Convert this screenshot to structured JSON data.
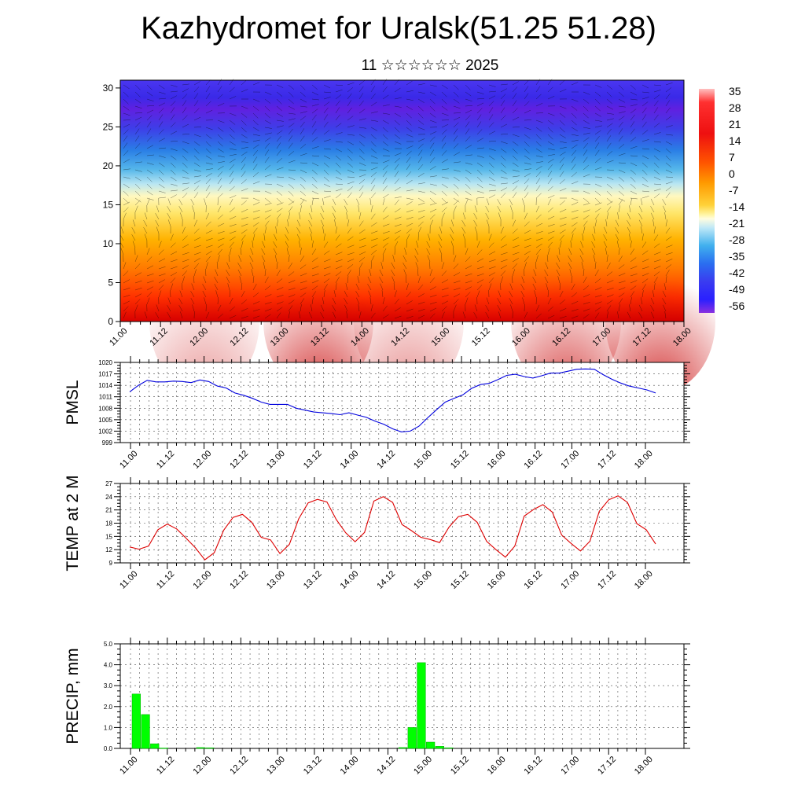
{
  "title": "Kazhydromet for Uralsk(51.25 51.28)",
  "subtitle": "11 ☆☆☆☆☆☆ 2025",
  "time_labels": [
    "11.00",
    "11.12",
    "12.00",
    "12.12",
    "13.00",
    "13.12",
    "14.00",
    "14.12",
    "15.00",
    "15.12",
    "16.00",
    "16.12",
    "17.00",
    "17.12",
    "18.00"
  ],
  "chart_data": [
    {
      "type": "heatmap",
      "name_hint": "vertical cross-section",
      "y_ticks": [
        0,
        5,
        10,
        15,
        20,
        25,
        30
      ],
      "ylim": [
        0,
        31
      ],
      "colorbar_labels": [
        "35",
        "28",
        "21",
        "14",
        "7",
        "0",
        "-7",
        "-14",
        "-21",
        "-28",
        "-35",
        "-42",
        "-49",
        "-56"
      ]
    },
    {
      "type": "line",
      "ylabel": "PMSL",
      "ylim": [
        999,
        1020
      ],
      "y_ticks": [
        "999",
        "1002",
        "1005",
        "1008",
        "1011",
        "1014",
        "1017",
        "1020"
      ],
      "color": "#0000dd",
      "values": [
        1012.3,
        1014.0,
        1015.3,
        1014.9,
        1014.9,
        1015.1,
        1015.0,
        1014.7,
        1015.4,
        1015.0,
        1013.8,
        1013.3,
        1012.0,
        1011.4,
        1010.6,
        1009.6,
        1009.0,
        1009.0,
        1009.0,
        1008.0,
        1007.5,
        1007.0,
        1006.8,
        1006.6,
        1006.3,
        1006.8,
        1006.2,
        1005.6,
        1004.6,
        1003.8,
        1002.6,
        1001.8,
        1002.0,
        1003.3,
        1005.5,
        1007.6,
        1009.6,
        1010.6,
        1011.5,
        1013.2,
        1014.2,
        1014.5,
        1015.5,
        1016.6,
        1016.9,
        1016.3,
        1015.9,
        1016.5,
        1017.2,
        1017.2,
        1017.7,
        1018.2,
        1018.3,
        1018.2,
        1016.8,
        1015.6,
        1014.6,
        1013.8,
        1013.3,
        1012.8,
        1012.0
      ]
    },
    {
      "type": "line",
      "ylabel": "TEMP at 2 M",
      "ylim": [
        9,
        27
      ],
      "y_ticks": [
        "9",
        "12",
        "15",
        "18",
        "21",
        "24",
        "27"
      ],
      "color": "#dd0000",
      "values": [
        12.6,
        12.1,
        12.8,
        16.5,
        17.8,
        16.7,
        14.6,
        12.4,
        9.7,
        11.3,
        16.4,
        19.3,
        20.0,
        18.2,
        14.8,
        14.2,
        11.1,
        13.2,
        19.0,
        22.6,
        23.4,
        22.8,
        18.8,
        15.8,
        13.8,
        15.9,
        23.0,
        24.0,
        22.7,
        17.7,
        16.3,
        14.8,
        14.3,
        13.6,
        17.1,
        19.5,
        20.0,
        18.2,
        13.9,
        12.0,
        10.3,
        12.8,
        19.6,
        21.1,
        22.2,
        20.5,
        15.3,
        13.4,
        11.7,
        13.9,
        20.7,
        23.3,
        24.2,
        22.7,
        17.9,
        16.5,
        13.3
      ]
    },
    {
      "type": "bar",
      "ylabel": "PRECIP, mm",
      "ylim": [
        0,
        5
      ],
      "y_ticks": [
        "0.0",
        "1.0",
        "2.0",
        "3.0",
        "4.0",
        "5.0"
      ],
      "color": "#00ff00",
      "bars": [
        {
          "t": 0,
          "v": 2.6
        },
        {
          "t": 1,
          "v": 1.62
        },
        {
          "t": 2,
          "v": 0.22
        },
        {
          "t": 3,
          "v": 0.02
        },
        {
          "t": 7,
          "v": 0.04
        },
        {
          "t": 8,
          "v": 0.03
        },
        {
          "t": 29,
          "v": 0.04
        },
        {
          "t": 30,
          "v": 1.0
        },
        {
          "t": 31,
          "v": 4.1
        },
        {
          "t": 32,
          "v": 0.3
        },
        {
          "t": 33,
          "v": 0.1
        },
        {
          "t": 34,
          "v": 0.03
        }
      ]
    }
  ]
}
